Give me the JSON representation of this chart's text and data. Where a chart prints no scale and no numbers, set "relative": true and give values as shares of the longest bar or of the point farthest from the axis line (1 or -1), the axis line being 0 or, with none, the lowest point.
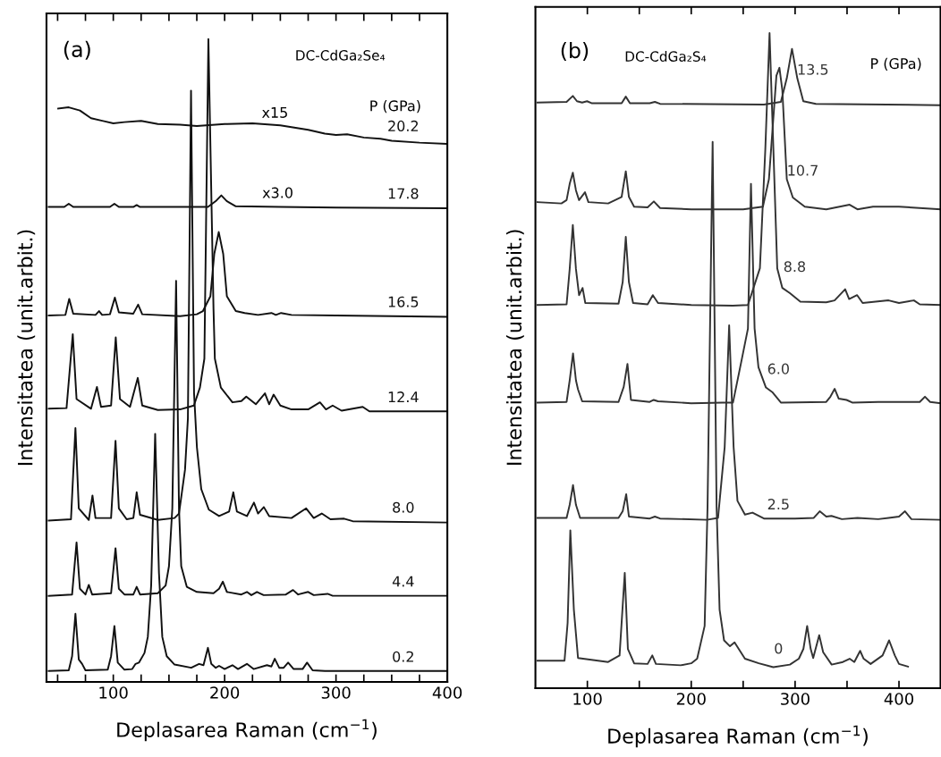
{
  "chart_data": [
    {
      "type": "line",
      "title": "(a)",
      "subtitle": "DC-CdGa₂Se₄",
      "xlabel": "Deplasarea Raman (cm$^{−1}$)",
      "ylabel": "Intensitatea (unit.arbit.)",
      "relative": true,
      "tick_labels": "x",
      "xlim": [
        40,
        400
      ],
      "xticks": [
        {
          "value": 50,
          "label": null
        },
        {
          "value": 75,
          "label": null
        },
        100,
        {
          "value": 125,
          "label": null
        },
        {
          "value": 150,
          "label": null
        },
        {
          "value": 175,
          "label": null
        },
        200,
        {
          "value": 225,
          "label": null
        },
        {
          "value": 250,
          "label": null
        },
        {
          "value": 275,
          "label": null
        },
        300,
        {
          "value": 325,
          "label": null
        },
        {
          "value": 350,
          "label": null
        },
        {
          "value": 375,
          "label": null
        },
        400
      ],
      "annotations": [
        "P (GPa)",
        "x15",
        "x3.0"
      ],
      "series": [
        {
          "name": "0.2",
          "color": "#111111",
          "x": [
            42,
            60,
            63,
            66,
            69,
            72,
            75,
            95,
            98,
            101,
            104,
            110,
            117,
            120,
            123,
            128,
            131,
            134,
            137.6,
            141,
            144,
            148,
            155,
            170,
            177,
            181,
            185,
            188,
            192,
            195,
            200,
            207,
            212,
            220,
            226,
            238,
            242,
            245,
            249,
            253,
            257,
            262,
            270,
            274,
            279,
            290,
            400
          ],
          "values": [
            0.017,
            0.018,
            0.04,
            0.106,
            0.035,
            0.028,
            0.018,
            0.019,
            0.04,
            0.087,
            0.03,
            0.019,
            0.02,
            0.028,
            0.03,
            0.045,
            0.07,
            0.15,
            0.386,
            0.17,
            0.07,
            0.04,
            0.027,
            0.022,
            0.028,
            0.026,
            0.053,
            0.028,
            0.022,
            0.025,
            0.02,
            0.026,
            0.02,
            0.028,
            0.02,
            0.026,
            0.024,
            0.036,
            0.022,
            0.022,
            0.03,
            0.02,
            0.02,
            0.03,
            0.018,
            0.017,
            0.017
          ]
        },
        {
          "name": "4.4",
          "color": "#111111",
          "x": [
            42,
            63,
            67,
            70,
            75,
            78,
            81,
            98,
            102,
            105,
            110,
            118,
            121,
            124,
            140,
            147,
            150,
            153,
            156.4,
            159,
            161,
            166,
            175,
            190,
            195,
            198.4,
            202,
            215,
            220,
            224,
            229,
            235,
            255,
            261.4,
            266,
            275,
            280,
            292.5,
            297,
            400
          ],
          "values": [
            0.134,
            0.136,
            0.217,
            0.145,
            0.136,
            0.151,
            0.136,
            0.138,
            0.208,
            0.145,
            0.136,
            0.136,
            0.148,
            0.136,
            0.138,
            0.15,
            0.18,
            0.27,
            0.624,
            0.27,
            0.18,
            0.148,
            0.14,
            0.138,
            0.145,
            0.156,
            0.14,
            0.136,
            0.14,
            0.135,
            0.14,
            0.135,
            0.136,
            0.143,
            0.136,
            0.14,
            0.135,
            0.137,
            0.134,
            0.134
          ]
        },
        {
          "name": "8.0",
          "color": "#111111",
          "x": [
            42,
            62,
            66,
            69,
            78,
            81.3,
            84,
            98,
            102,
            105,
            112,
            118,
            121,
            124,
            140,
            155,
            159,
            164.4,
            167,
            169.8,
            172.5,
            175.1,
            179,
            185.8,
            195,
            204,
            207.8,
            211,
            220,
            226.3,
            230,
            235.2,
            240,
            260,
            273.2,
            280,
            287.2,
            295,
            307.3,
            315,
            400
          ],
          "values": [
            0.251,
            0.253,
            0.395,
            0.27,
            0.252,
            0.29,
            0.255,
            0.255,
            0.375,
            0.27,
            0.253,
            0.255,
            0.295,
            0.26,
            0.252,
            0.255,
            0.262,
            0.33,
            0.41,
            0.92,
            0.45,
            0.365,
            0.3,
            0.268,
            0.258,
            0.265,
            0.295,
            0.265,
            0.258,
            0.279,
            0.262,
            0.272,
            0.258,
            0.255,
            0.27,
            0.255,
            0.262,
            0.253,
            0.254,
            0.25,
            0.248
          ]
        },
        {
          "name": "12.4",
          "color": "#111111",
          "x": [
            42,
            58,
            63.6,
            67,
            80,
            85.3,
            89,
            98,
            102.2,
            106,
            115,
            122,
            126,
            140,
            160,
            172.4,
            177.8,
            181.8,
            185.4,
            190,
            191.2,
            196.6,
            207,
            215,
            219.4,
            228,
            236.2,
            240,
            244,
            250,
            260,
            275,
            285.6,
            291,
            297,
            305,
            324,
            330,
            400
          ],
          "values": [
            0.425,
            0.426,
            0.541,
            0.44,
            0.425,
            0.459,
            0.428,
            0.43,
            0.536,
            0.44,
            0.428,
            0.473,
            0.43,
            0.423,
            0.424,
            0.43,
            0.458,
            0.503,
            1.0,
            0.58,
            0.503,
            0.458,
            0.435,
            0.437,
            0.444,
            0.432,
            0.449,
            0.432,
            0.447,
            0.43,
            0.424,
            0.424,
            0.435,
            0.424,
            0.43,
            0.422,
            0.428,
            0.421,
            0.421
          ]
        },
        {
          "name": "16.5",
          "color": "#111111",
          "x": [
            42,
            57,
            60.4,
            64,
            84,
            87.2,
            90,
            97,
            101.4,
            105,
            118,
            122.3,
            126,
            160,
            175,
            180.5,
            187.2,
            190.7,
            194.7,
            198.7,
            202,
            210,
            218,
            230,
            242,
            246,
            250.7,
            260,
            300,
            350,
            400
          ],
          "values": [
            0.57,
            0.571,
            0.596,
            0.573,
            0.571,
            0.577,
            0.571,
            0.572,
            0.598,
            0.575,
            0.573,
            0.587,
            0.572,
            0.569,
            0.572,
            0.577,
            0.6,
            0.666,
            0.7,
            0.666,
            0.6,
            0.577,
            0.574,
            0.571,
            0.574,
            0.571,
            0.574,
            0.571,
            0.57,
            0.569,
            0.568
          ]
        },
        {
          "name": "17.8",
          "color": "#111111",
          "x": [
            42,
            56,
            60,
            64,
            97,
            101,
            105,
            118,
            121,
            124,
            185,
            192,
            197,
            202,
            210,
            250,
            300,
            400
          ],
          "values": [
            0.739,
            0.739,
            0.744,
            0.739,
            0.739,
            0.744,
            0.739,
            0.739,
            0.742,
            0.739,
            0.739,
            0.748,
            0.757,
            0.748,
            0.74,
            0.739,
            0.738,
            0.737
          ]
        },
        {
          "name": "20.2",
          "color": "#111111",
          "x": [
            50.5,
            60,
            70,
            80,
            90,
            100,
            110,
            125,
            140,
            160,
            175,
            200,
            225,
            250,
            275,
            290,
            300,
            310,
            325,
            340,
            350,
            375,
            400
          ],
          "values": [
            0.892,
            0.894,
            0.889,
            0.877,
            0.873,
            0.869,
            0.871,
            0.873,
            0.868,
            0.867,
            0.865,
            0.868,
            0.869,
            0.866,
            0.859,
            0.853,
            0.851,
            0.852,
            0.847,
            0.845,
            0.842,
            0.839,
            0.837
          ]
        }
      ]
    },
    {
      "type": "line",
      "title": "(b)",
      "subtitle": "DC-CdGa₂S₄",
      "xlabel": "Deplasarea Raman (cm$^{−1}$)",
      "ylabel": "Intensitatea (unit.arbit.)",
      "relative": true,
      "tick_labels": "x",
      "xlim": [
        50,
        440
      ],
      "xticks": [
        100,
        {
          "value": 150,
          "label": null
        },
        200,
        {
          "value": 250,
          "label": null
        },
        300,
        {
          "value": 350,
          "label": null
        },
        400
      ],
      "annotations": [
        "P (GPa)"
      ],
      "series": [
        {
          "name": "0",
          "color": "#333333",
          "x": [
            52,
            78,
            81,
            83.6,
            87,
            91,
            120,
            131,
            136,
            139,
            145,
            158,
            162.5,
            166,
            190,
            200,
            205.7,
            212.9,
            215.7,
            220.6,
            224.4,
            227.3,
            231.6,
            237.3,
            241.7,
            251.7,
            265,
            279,
            295,
            303.6,
            308,
            311.6,
            315,
            317.4,
            323.2,
            327,
            335.2,
            346,
            352.5,
            357,
            362.6,
            366,
            372.7,
            384.2,
            390.5,
            396,
            400,
            408.7
          ],
          "values": [
            0.042,
            0.042,
            0.1,
            0.241,
            0.12,
            0.046,
            0.04,
            0.05,
            0.176,
            0.06,
            0.038,
            0.037,
            0.05,
            0.037,
            0.035,
            0.038,
            0.045,
            0.095,
            0.277,
            0.834,
            0.277,
            0.12,
            0.073,
            0.064,
            0.07,
            0.045,
            0.038,
            0.032,
            0.036,
            0.045,
            0.06,
            0.095,
            0.06,
            0.046,
            0.081,
            0.055,
            0.036,
            0.04,
            0.045,
            0.04,
            0.057,
            0.045,
            0.037,
            0.05,
            0.073,
            0.05,
            0.037,
            0.033
          ]
        },
        {
          "name": "2.5",
          "color": "#333333",
          "x": [
            52,
            80,
            83,
            86.2,
            89,
            93,
            130,
            134,
            137.4,
            140,
            160,
            165,
            170,
            215,
            225.8,
            232.2,
            236.5,
            240.8,
            244.5,
            251.7,
            259,
            270,
            300,
            318,
            323.7,
            330,
            335,
            345,
            360,
            380,
            390,
            400,
            405.8,
            412,
            440
          ],
          "values": [
            0.26,
            0.26,
            0.28,
            0.31,
            0.28,
            0.26,
            0.26,
            0.27,
            0.296,
            0.262,
            0.259,
            0.262,
            0.259,
            0.257,
            0.26,
            0.368,
            0.554,
            0.368,
            0.286,
            0.265,
            0.268,
            0.259,
            0.259,
            0.26,
            0.27,
            0.262,
            0.263,
            0.258,
            0.26,
            0.258,
            0.26,
            0.262,
            0.27,
            0.258,
            0.257
          ]
        },
        {
          "name": "6.0",
          "color": "#333333",
          "x": [
            52,
            80,
            83,
            86.2,
            89,
            91,
            95,
            130,
            135,
            138.6,
            142,
            160,
            163.9,
            168,
            200,
            230,
            240.2,
            248.9,
            254.6,
            257.5,
            261,
            264.7,
            271.9,
            278,
            286.3,
            330,
            334,
            338.1,
            342,
            349.6,
            355,
            380,
            420,
            425,
            430,
            440
          ],
          "values": [
            0.436,
            0.437,
            0.47,
            0.511,
            0.47,
            0.456,
            0.438,
            0.437,
            0.46,
            0.495,
            0.44,
            0.437,
            0.44,
            0.438,
            0.435,
            0.436,
            0.436,
            0.504,
            0.549,
            0.77,
            0.549,
            0.49,
            0.459,
            0.452,
            0.436,
            0.437,
            0.445,
            0.457,
            0.442,
            0.44,
            0.436,
            0.437,
            0.437,
            0.445,
            0.437,
            0.435
          ]
        },
        {
          "name": "8.8",
          "color": "#333333",
          "x": [
            52,
            80,
            83,
            86,
            89,
            92,
            95.4,
            98,
            130,
            134,
            137,
            140,
            144,
            158,
            163,
            168,
            200,
            240,
            254.6,
            266.1,
            271.3,
            275.4,
            279.1,
            282.8,
            287.7,
            295,
            305,
            330,
            338,
            348.2,
            352,
            359.7,
            365,
            390,
            400,
            414.4,
            420,
            440
          ],
          "values": [
            0.585,
            0.586,
            0.64,
            0.707,
            0.64,
            0.6,
            0.611,
            0.588,
            0.587,
            0.62,
            0.689,
            0.62,
            0.588,
            0.586,
            0.6,
            0.588,
            0.585,
            0.584,
            0.585,
            0.641,
            0.822,
            1.0,
            0.822,
            0.641,
            0.611,
            0.603,
            0.59,
            0.589,
            0.592,
            0.609,
            0.594,
            0.6,
            0.588,
            0.592,
            0.588,
            0.592,
            0.586,
            0.585
          ]
        },
        {
          "name": "10.7",
          "color": "#333333",
          "x": [
            52,
            75,
            80,
            83,
            86,
            89,
            92,
            97.7,
            101,
            120,
            133,
            137,
            140,
            145,
            158,
            164,
            170,
            200,
            250,
            269,
            274.8,
            282,
            284.9,
            287.7,
            292,
            297.8,
            309.3,
            330,
            352.5,
            360,
            375,
            400,
            440
          ],
          "values": [
            0.742,
            0.74,
            0.745,
            0.77,
            0.787,
            0.76,
            0.745,
            0.757,
            0.742,
            0.74,
            0.75,
            0.789,
            0.75,
            0.735,
            0.734,
            0.743,
            0.733,
            0.731,
            0.731,
            0.735,
            0.777,
            0.935,
            0.947,
            0.913,
            0.777,
            0.749,
            0.735,
            0.731,
            0.738,
            0.731,
            0.735,
            0.735,
            0.731
          ]
        },
        {
          "name": "13.5",
          "color": "#333333",
          "x": [
            52,
            80,
            86,
            90,
            95,
            99.7,
            104,
            133,
            137,
            141,
            160,
            165,
            170,
            270,
            286.3,
            292,
            297,
            302.1,
            307.9,
            320,
            440
          ],
          "values": [
            0.894,
            0.895,
            0.904,
            0.896,
            0.894,
            0.896,
            0.893,
            0.893,
            0.903,
            0.893,
            0.893,
            0.895,
            0.892,
            0.891,
            0.895,
            0.931,
            0.976,
            0.931,
            0.896,
            0.892,
            0.89
          ]
        }
      ]
    }
  ]
}
